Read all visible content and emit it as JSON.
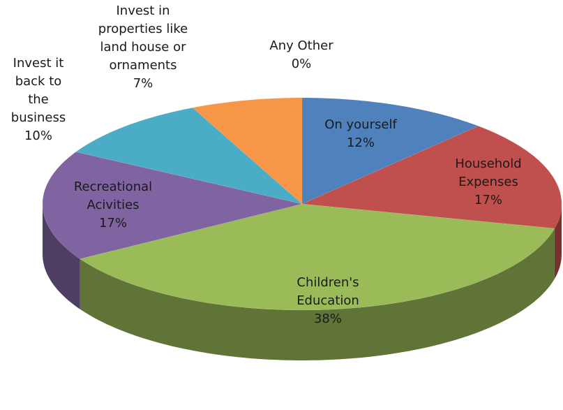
{
  "chart_data": {
    "type": "pie3d",
    "categories": [
      "On yourself",
      "Household Expenses",
      "Children's Education",
      "Recreational Acivities",
      "Invest it back to the business",
      "Invest in properties like land house  or ornaments",
      "Any Other"
    ],
    "values": [
      12,
      17,
      38,
      17,
      10,
      7,
      0
    ],
    "value_labels": [
      "12%",
      "17%",
      "38%",
      "17%",
      "10%",
      "7%",
      "0%"
    ],
    "colors": [
      "#4f81bd",
      "#c0504d",
      "#9bbb59",
      "#8064a2",
      "#4bacc6",
      "#f79646",
      "#2c4d75"
    ]
  }
}
